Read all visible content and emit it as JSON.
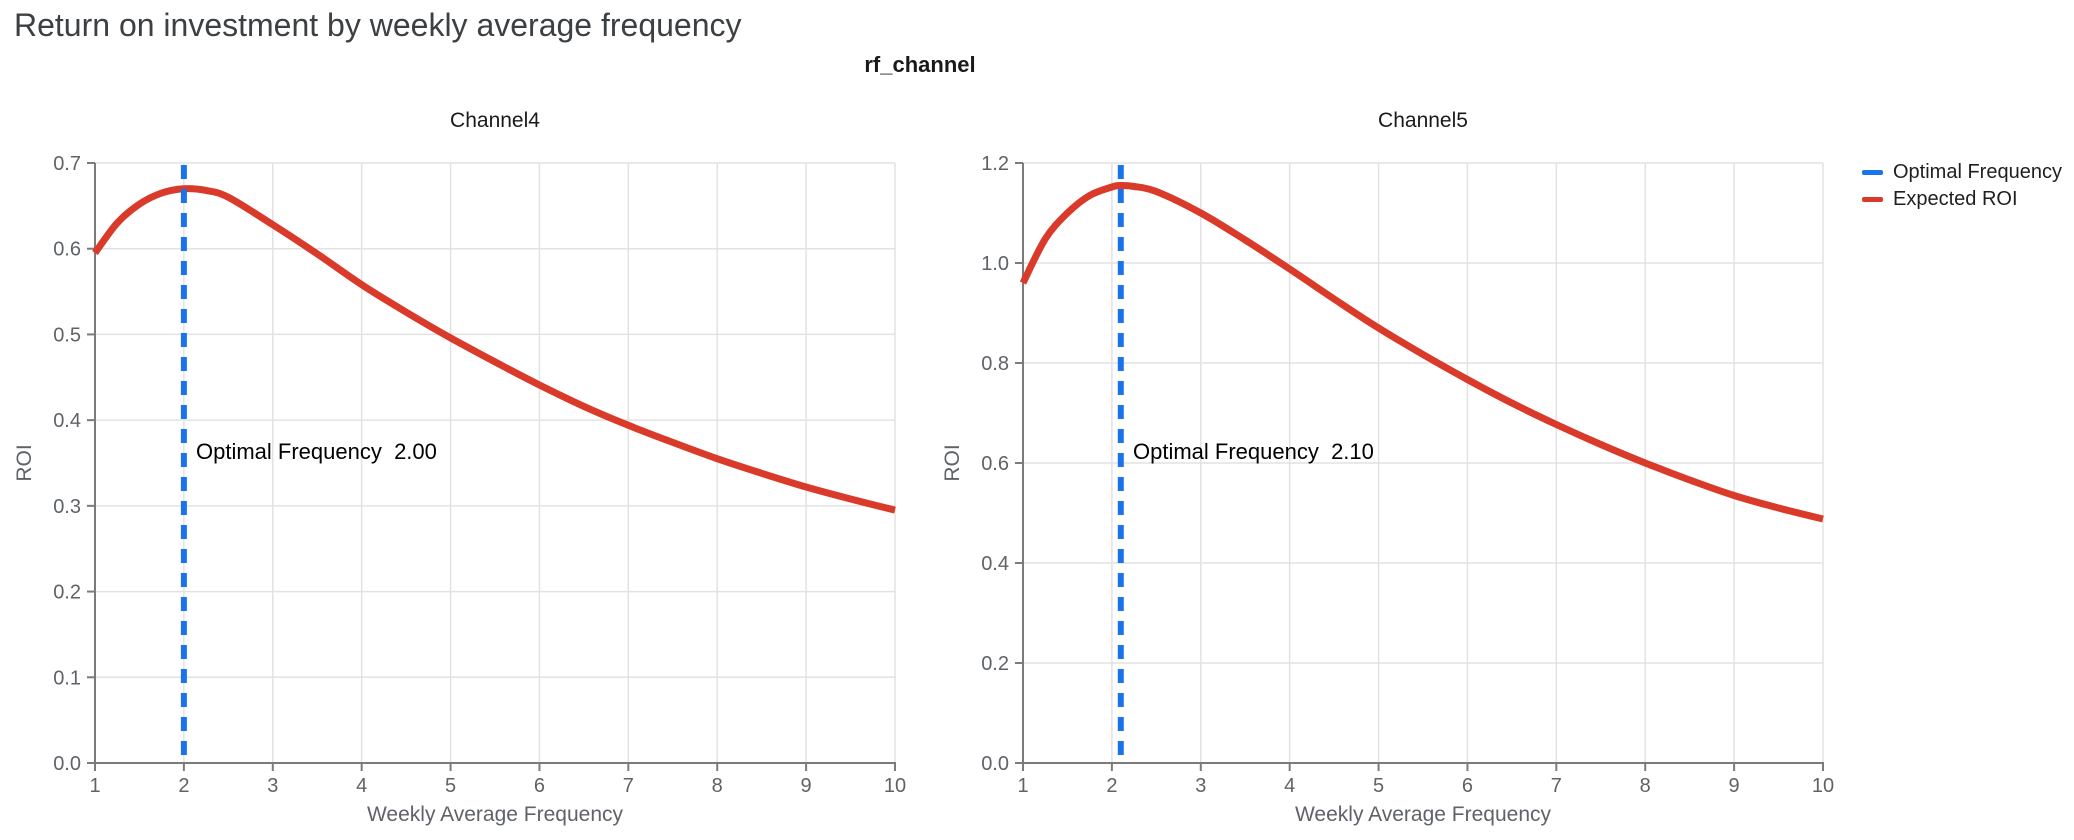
{
  "chart_data": {
    "type": "line",
    "title": "Return on investment by weekly average frequency",
    "facet_title": "rf_channel",
    "xlabel": "Weekly Average Frequency",
    "ylabel": "ROI",
    "xlim": [
      1,
      10
    ],
    "xticks": [
      1,
      2,
      3,
      4,
      5,
      6,
      7,
      8,
      9,
      10
    ],
    "grid": true,
    "legend_position": "top-right",
    "legend": [
      {
        "label": "Optimal Frequency",
        "color": "#1a73e8",
        "style": "dashed"
      },
      {
        "label": "Expected ROI",
        "color": "#d93a2a",
        "style": "solid"
      }
    ],
    "colors": {
      "optimal_frequency_line": "#1a73e8",
      "expected_roi_line": "#d93a2a",
      "gridline": "#e2e2e2",
      "axis": "#7b7b7b",
      "tick_label": "#5f6368",
      "title": "#3c4043"
    },
    "panels": [
      {
        "title": "Channel4",
        "optimal_frequency": 2.0,
        "annotation": "Optimal Frequency  2.00",
        "ylim": [
          0.0,
          0.7
        ],
        "yticks": [
          "0.0",
          "0.1",
          "0.2",
          "0.3",
          "0.4",
          "0.5",
          "0.6",
          "0.7"
        ],
        "x": [
          1,
          1.25,
          1.5,
          1.75,
          2,
          2.25,
          2.5,
          3,
          3.5,
          4,
          4.5,
          5,
          5.5,
          6,
          6.5,
          7,
          7.5,
          8,
          8.5,
          9,
          9.5,
          10
        ],
        "roi": [
          0.595,
          0.63,
          0.652,
          0.665,
          0.67,
          0.668,
          0.66,
          0.628,
          0.594,
          0.558,
          0.526,
          0.496,
          0.468,
          0.441,
          0.416,
          0.394,
          0.374,
          0.355,
          0.338,
          0.322,
          0.308,
          0.295
        ]
      },
      {
        "title": "Channel5",
        "optimal_frequency": 2.1,
        "annotation": "Optimal Frequency  2.10",
        "ylim": [
          0.0,
          1.2
        ],
        "yticks": [
          "0.0",
          "0.2",
          "0.4",
          "0.6",
          "0.8",
          "1.0",
          "1.2"
        ],
        "x": [
          1,
          1.25,
          1.5,
          1.75,
          2,
          2.1,
          2.25,
          2.5,
          3,
          3.5,
          4,
          4.5,
          5,
          5.5,
          6,
          6.5,
          7,
          7.5,
          8,
          8.5,
          9,
          9.5,
          10
        ],
        "roi": [
          0.96,
          1.048,
          1.1,
          1.135,
          1.152,
          1.155,
          1.153,
          1.143,
          1.1,
          1.046,
          0.988,
          0.928,
          0.87,
          0.817,
          0.767,
          0.72,
          0.677,
          0.637,
          0.6,
          0.566,
          0.535,
          0.51,
          0.488
        ]
      }
    ]
  }
}
